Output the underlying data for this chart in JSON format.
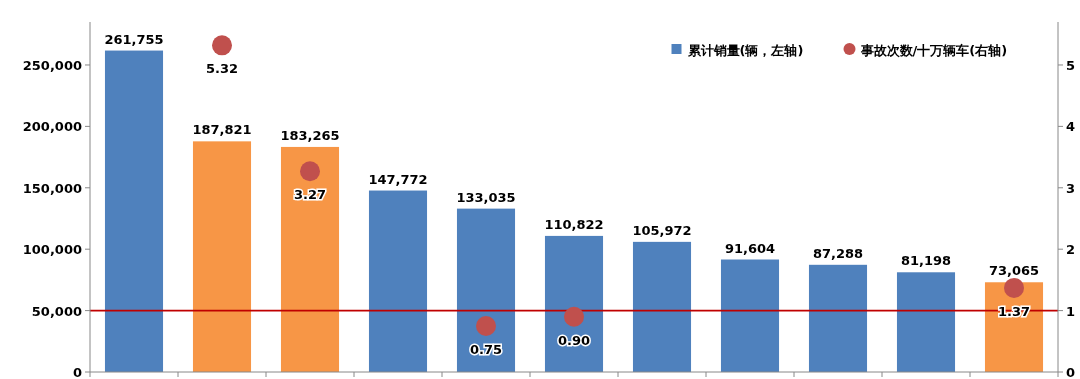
{
  "chart_data": {
    "type": "bar",
    "categories": [
      null,
      null,
      null,
      null,
      null,
      null,
      null,
      null,
      null,
      null,
      null
    ],
    "series": [
      {
        "name": "累计销量(辆，左轴)",
        "color": "#4f81bd",
        "colors": [
          "#4f81bd",
          "#f79646",
          "#f79646",
          "#4f81bd",
          "#4f81bd",
          "#4f81bd",
          "#4f81bd",
          "#4f81bd",
          "#4f81bd",
          "#4f81bd",
          "#f79646"
        ],
        "values": [
          261755,
          187821,
          183265,
          147772,
          133035,
          110822,
          105972,
          91604,
          87288,
          81198,
          73065
        ],
        "value_labels": [
          "261,755",
          "187,821",
          "183,265",
          "147,772",
          "133,035",
          "110,822",
          "105,972",
          "91,604",
          "87,288",
          "81,198",
          "73,065"
        ]
      },
      {
        "name": "事故次数/十万辆车(右轴)",
        "type": "scatter",
        "axis": "y2",
        "color": "#c0504d",
        "values": [
          null,
          5.32,
          3.27,
          null,
          0.75,
          0.9,
          null,
          null,
          null,
          null,
          1.37
        ],
        "value_labels": [
          null,
          "5.32",
          "3.27",
          null,
          "0.75",
          "0.90",
          null,
          null,
          null,
          null,
          "1.37"
        ]
      }
    ],
    "ylim": [
      0,
      285000
    ],
    "yticks": [
      {
        "value": 0,
        "label": "0"
      },
      {
        "value": 50000,
        "label": "50,000"
      },
      {
        "value": 100000,
        "label": "100,000"
      },
      {
        "value": 150000,
        "label": "150,000"
      },
      {
        "value": 200000,
        "label": "200,000"
      },
      {
        "value": 250000,
        "label": "250,000"
      }
    ],
    "y2lim": [
      0,
      5.7
    ],
    "y2ticks": [
      0,
      1,
      2,
      3,
      4,
      5
    ],
    "ref_lines": [
      {
        "axis": "y2",
        "value": 1,
        "color": "#c00000"
      }
    ],
    "data_labels": true,
    "legend": "top right",
    "marker": "circle",
    "grid": false
  }
}
